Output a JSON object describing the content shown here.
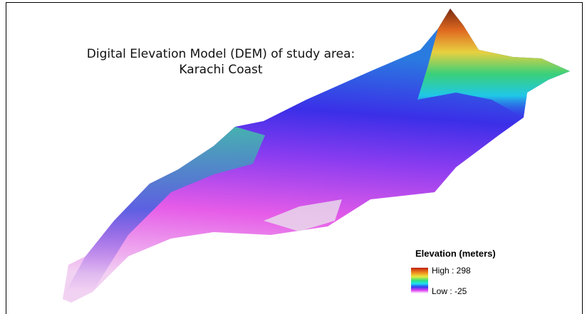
{
  "map": {
    "title": [
      "Digital Elevation Model (DEM) of study area:",
      "Karachi Coast"
    ],
    "legend": {
      "title": "Elevation (meters)",
      "high": "High : 298",
      "low": "Low : -25"
    }
  }
}
